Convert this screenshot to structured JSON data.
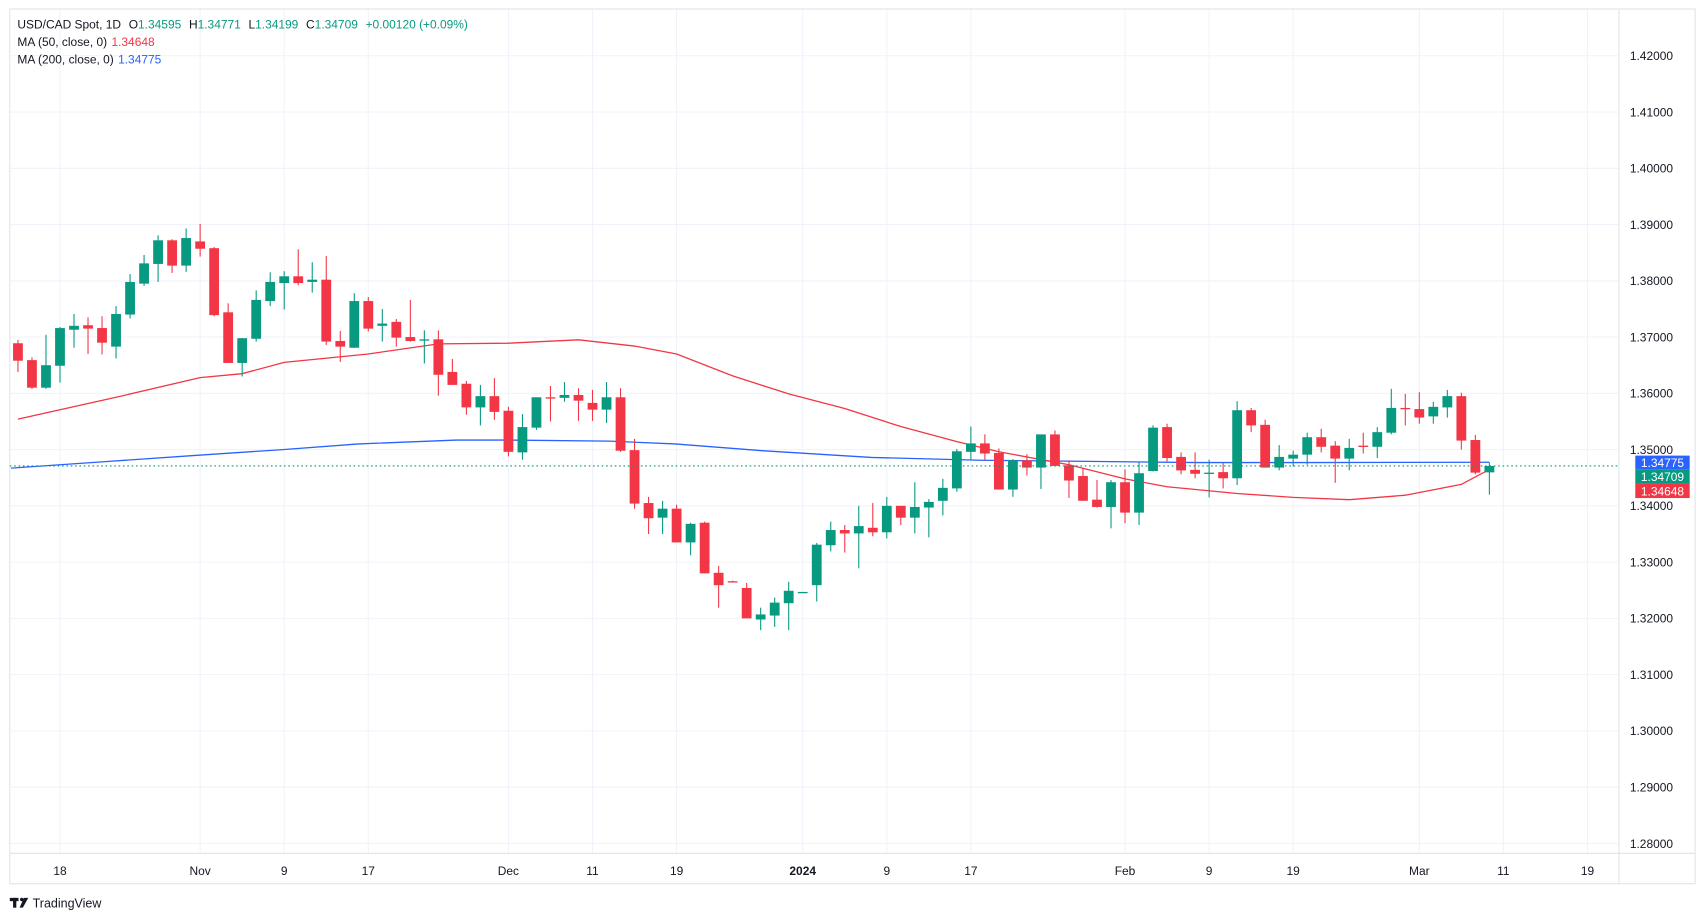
{
  "legend": {
    "symbol": "USD/CAD Spot, 1D",
    "open_label": "O",
    "open": "1.34595",
    "high_label": "H",
    "high": "1.34771",
    "low_label": "L",
    "low": "1.34199",
    "close_label": "C",
    "close": "1.34709",
    "change": "+0.00120 (+0.09%)",
    "ma50_label": "MA (50, close, 0)",
    "ma50_value": "1.34648",
    "ma200_label": "MA (200, close, 0)",
    "ma200_value": "1.34775"
  },
  "price_tags": {
    "ma200": "1.34775",
    "close": "1.34709",
    "ma50": "1.34648"
  },
  "brand": "TradingView",
  "colors": {
    "up": "#089981",
    "down": "#f23645",
    "ma50": "#f23645",
    "ma200": "#2962ff",
    "grid": "#f0f3fa"
  },
  "chart_data": {
    "type": "candlestick",
    "title": "USD/CAD Spot, 1D",
    "ylim": [
      1.275,
      1.425
    ],
    "y_ticks": [
      "1.28000",
      "1.29000",
      "1.30000",
      "1.31000",
      "1.32000",
      "1.33000",
      "1.34000",
      "1.35000",
      "1.36000",
      "1.37000",
      "1.38000",
      "1.39000",
      "1.40000",
      "1.41000",
      "1.42000"
    ],
    "x_ticks": [
      {
        "label": "18",
        "bar": 4
      },
      {
        "label": "Nov",
        "bar": 14
      },
      {
        "label": "9",
        "bar": 20
      },
      {
        "label": "17",
        "bar": 26
      },
      {
        "label": "Dec",
        "bar": 36
      },
      {
        "label": "11",
        "bar": 42
      },
      {
        "label": "19",
        "bar": 48
      },
      {
        "label": "2024",
        "bar": 57,
        "bold": true
      },
      {
        "label": "9",
        "bar": 63
      },
      {
        "label": "17",
        "bar": 69
      },
      {
        "label": "Feb",
        "bar": 80
      },
      {
        "label": "9",
        "bar": 86
      },
      {
        "label": "19",
        "bar": 92
      },
      {
        "label": "Mar",
        "bar": 101
      },
      {
        "label": "11",
        "bar": 107
      },
      {
        "label": "19",
        "bar": 113
      }
    ],
    "ohlc_fields": [
      "open",
      "high",
      "low",
      "close"
    ],
    "ohlc": [
      [
        1.3689,
        1.3695,
        1.3638,
        1.3658
      ],
      [
        1.3659,
        1.3664,
        1.3608,
        1.361
      ],
      [
        1.361,
        1.3704,
        1.3608,
        1.365
      ],
      [
        1.3649,
        1.3718,
        1.3619,
        1.3716
      ],
      [
        1.3713,
        1.3741,
        1.3681,
        1.372
      ],
      [
        1.3721,
        1.3735,
        1.367,
        1.3715
      ],
      [
        1.3716,
        1.3737,
        1.3669,
        1.369
      ],
      [
        1.3683,
        1.3755,
        1.3662,
        1.3741
      ],
      [
        1.374,
        1.3812,
        1.3733,
        1.3798
      ],
      [
        1.3795,
        1.3846,
        1.3791,
        1.3831
      ],
      [
        1.383,
        1.3881,
        1.3798,
        1.3872
      ],
      [
        1.3872,
        1.3874,
        1.3814,
        1.3827
      ],
      [
        1.3827,
        1.3893,
        1.3816,
        1.3876
      ],
      [
        1.387,
        1.3901,
        1.3843,
        1.3857
      ],
      [
        1.3858,
        1.386,
        1.3737,
        1.3739
      ],
      [
        1.3744,
        1.376,
        1.3654,
        1.3654
      ],
      [
        1.3654,
        1.3698,
        1.363,
        1.3698
      ],
      [
        1.3697,
        1.3783,
        1.3692,
        1.3766
      ],
      [
        1.3764,
        1.3815,
        1.3755,
        1.3798
      ],
      [
        1.3796,
        1.3817,
        1.3749,
        1.3808
      ],
      [
        1.3808,
        1.3856,
        1.3792,
        1.3796
      ],
      [
        1.3798,
        1.3833,
        1.3779,
        1.3802
      ],
      [
        1.3802,
        1.3844,
        1.3686,
        1.3692
      ],
      [
        1.3693,
        1.3711,
        1.3656,
        1.3683
      ],
      [
        1.3681,
        1.3778,
        1.3681,
        1.3764
      ],
      [
        1.3764,
        1.3771,
        1.371,
        1.3715
      ],
      [
        1.372,
        1.375,
        1.3692,
        1.3724
      ],
      [
        1.3727,
        1.3732,
        1.3683,
        1.3699
      ],
      [
        1.37,
        1.3766,
        1.3692,
        1.3693
      ],
      [
        1.3694,
        1.3712,
        1.3653,
        1.3696
      ],
      [
        1.3696,
        1.3712,
        1.3596,
        1.3633
      ],
      [
        1.3638,
        1.3661,
        1.3615,
        1.3615
      ],
      [
        1.3617,
        1.3622,
        1.3562,
        1.3575
      ],
      [
        1.3575,
        1.3615,
        1.3543,
        1.3595
      ],
      [
        1.3595,
        1.3627,
        1.3553,
        1.3567
      ],
      [
        1.3569,
        1.3576,
        1.3488,
        1.3496
      ],
      [
        1.3495,
        1.3563,
        1.3482,
        1.354
      ],
      [
        1.3539,
        1.3593,
        1.3535,
        1.3593
      ],
      [
        1.3593,
        1.3613,
        1.355,
        1.3592
      ],
      [
        1.3592,
        1.362,
        1.3585,
        1.3597
      ],
      [
        1.3597,
        1.3609,
        1.3551,
        1.3587
      ],
      [
        1.3583,
        1.3606,
        1.3551,
        1.3571
      ],
      [
        1.3571,
        1.362,
        1.3547,
        1.3593
      ],
      [
        1.3593,
        1.3609,
        1.3496,
        1.3498
      ],
      [
        1.3499,
        1.3519,
        1.3395,
        1.3404
      ],
      [
        1.3405,
        1.3416,
        1.335,
        1.3378
      ],
      [
        1.3379,
        1.3409,
        1.335,
        1.3395
      ],
      [
        1.3395,
        1.3402,
        1.3335,
        1.3335
      ],
      [
        1.3335,
        1.337,
        1.3312,
        1.3368
      ],
      [
        1.337,
        1.3372,
        1.328,
        1.328
      ],
      [
        1.3281,
        1.3293,
        1.3219,
        1.3259
      ],
      [
        1.3266,
        1.3267,
        1.3264,
        1.3265
      ],
      [
        1.3254,
        1.3263,
        1.32,
        1.32
      ],
      [
        1.3198,
        1.3219,
        1.3179,
        1.3207
      ],
      [
        1.3205,
        1.3237,
        1.3185,
        1.3228
      ],
      [
        1.3227,
        1.3265,
        1.3179,
        1.3249
      ],
      [
        1.3246,
        1.3247,
        1.3245,
        1.3247
      ],
      [
        1.3259,
        1.3334,
        1.323,
        1.3331
      ],
      [
        1.333,
        1.3372,
        1.3319,
        1.3357
      ],
      [
        1.3357,
        1.3366,
        1.3317,
        1.3351
      ],
      [
        1.3351,
        1.34,
        1.3289,
        1.3364
      ],
      [
        1.3361,
        1.3405,
        1.3346,
        1.3353
      ],
      [
        1.3353,
        1.3416,
        1.3342,
        1.34
      ],
      [
        1.34,
        1.34,
        1.3366,
        1.3379
      ],
      [
        1.3379,
        1.3442,
        1.3351,
        1.3398
      ],
      [
        1.3397,
        1.3412,
        1.3344,
        1.3407
      ],
      [
        1.3409,
        1.3448,
        1.3383,
        1.3432
      ],
      [
        1.3431,
        1.3501,
        1.3425,
        1.3497
      ],
      [
        1.3496,
        1.3541,
        1.3481,
        1.3511
      ],
      [
        1.3511,
        1.3527,
        1.3481,
        1.3493
      ],
      [
        1.3494,
        1.3502,
        1.3429,
        1.3429
      ],
      [
        1.3429,
        1.3483,
        1.3416,
        1.3481
      ],
      [
        1.3481,
        1.3492,
        1.3454,
        1.3468
      ],
      [
        1.3468,
        1.3527,
        1.343,
        1.3527
      ],
      [
        1.3527,
        1.3534,
        1.3471,
        1.3471
      ],
      [
        1.3472,
        1.3481,
        1.3414,
        1.3445
      ],
      [
        1.3453,
        1.3468,
        1.3409,
        1.3409
      ],
      [
        1.3411,
        1.3446,
        1.3397,
        1.3398
      ],
      [
        1.3398,
        1.3446,
        1.336,
        1.3442
      ],
      [
        1.3442,
        1.3465,
        1.3369,
        1.3388
      ],
      [
        1.3388,
        1.3477,
        1.3366,
        1.3458
      ],
      [
        1.3462,
        1.3543,
        1.3461,
        1.3539
      ],
      [
        1.354,
        1.3546,
        1.3479,
        1.3485
      ],
      [
        1.3487,
        1.3495,
        1.3456,
        1.3463
      ],
      [
        1.3464,
        1.3495,
        1.3449,
        1.3457
      ],
      [
        1.3457,
        1.3482,
        1.3415,
        1.3459
      ],
      [
        1.346,
        1.3477,
        1.3431,
        1.3449
      ],
      [
        1.3449,
        1.3586,
        1.3437,
        1.357
      ],
      [
        1.357,
        1.3574,
        1.3531,
        1.3543
      ],
      [
        1.3544,
        1.3553,
        1.3468,
        1.3468
      ],
      [
        1.3468,
        1.3508,
        1.3463,
        1.3487
      ],
      [
        1.3484,
        1.3498,
        1.347,
        1.3491
      ],
      [
        1.3491,
        1.353,
        1.3473,
        1.3522
      ],
      [
        1.3522,
        1.3537,
        1.3495,
        1.3505
      ],
      [
        1.3507,
        1.3515,
        1.3441,
        1.3484
      ],
      [
        1.3484,
        1.3519,
        1.3463,
        1.3503
      ],
      [
        1.3507,
        1.353,
        1.3493,
        1.3505
      ],
      [
        1.3505,
        1.354,
        1.3485,
        1.3531
      ],
      [
        1.353,
        1.3608,
        1.3527,
        1.3574
      ],
      [
        1.3574,
        1.3599,
        1.3543,
        1.3573
      ],
      [
        1.3572,
        1.3602,
        1.3546,
        1.3557
      ],
      [
        1.3559,
        1.3585,
        1.3546,
        1.3576
      ],
      [
        1.3575,
        1.3606,
        1.3557,
        1.3595
      ],
      [
        1.3595,
        1.3601,
        1.35,
        1.3516
      ],
      [
        1.3517,
        1.3526,
        1.3456,
        1.3459
      ],
      [
        1.34595,
        1.34771,
        1.34199,
        1.34709
      ]
    ],
    "ma50": [
      [
        1,
        1.3554
      ],
      [
        8,
        1.3593
      ],
      [
        14,
        1.3628
      ],
      [
        17,
        1.3635
      ],
      [
        20,
        1.3655
      ],
      [
        26,
        1.367
      ],
      [
        31,
        1.3688
      ],
      [
        36,
        1.3689
      ],
      [
        41,
        1.3695
      ],
      [
        45,
        1.3684
      ],
      [
        48,
        1.367
      ],
      [
        52,
        1.3631
      ],
      [
        56,
        1.3599
      ],
      [
        60,
        1.3573
      ],
      [
        64,
        1.3541
      ],
      [
        68,
        1.3514
      ],
      [
        71,
        1.3496
      ],
      [
        76,
        1.3473
      ],
      [
        80,
        1.3448
      ],
      [
        83,
        1.3434
      ],
      [
        88,
        1.3422
      ],
      [
        92,
        1.3415
      ],
      [
        96,
        1.3411
      ],
      [
        100,
        1.3419
      ],
      [
        104,
        1.3438
      ],
      [
        106,
        1.34648
      ]
    ],
    "ma200": [
      [
        0.5,
        1.3467
      ],
      [
        7.5,
        1.3479
      ],
      [
        13.9,
        1.349
      ],
      [
        19.9,
        1.35
      ],
      [
        25.3,
        1.351
      ],
      [
        32.3,
        1.3517
      ],
      [
        35.9,
        1.3517
      ],
      [
        43.2,
        1.3515
      ],
      [
        47.9,
        1.351
      ],
      [
        54.1,
        1.3498
      ],
      [
        61.9,
        1.3486
      ],
      [
        69.7,
        1.3481
      ],
      [
        77.4,
        1.3479
      ],
      [
        85.2,
        1.3477
      ],
      [
        93,
        1.3477
      ],
      [
        106,
        1.34775
      ]
    ]
  }
}
